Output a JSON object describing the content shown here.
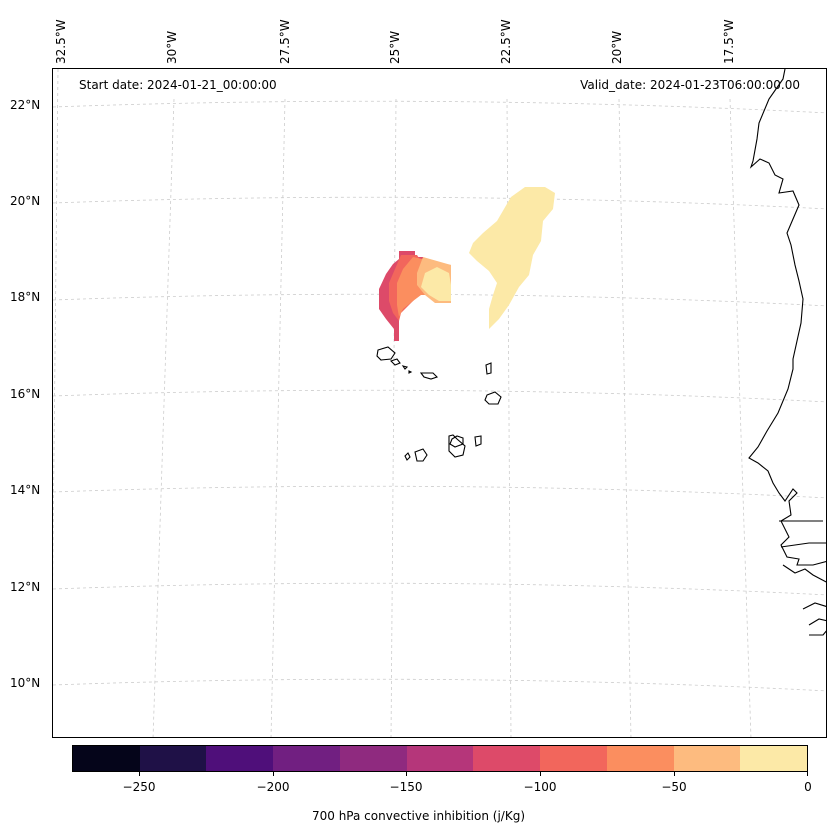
{
  "map": {
    "start_date": "Start date: 2024-01-21_00:00:00",
    "valid_date": "Valid_date: 2024-01-23T06:00:00.00",
    "lon_labels": [
      "32.5°W",
      "30°W",
      "27.5°W",
      "25°W",
      "22.5°W",
      "20°W",
      "17.5°W"
    ],
    "lat_labels": [
      "22°N",
      "20°N",
      "18°N",
      "16°N",
      "14°N",
      "12°N",
      "10°N"
    ],
    "gridlines": true,
    "coastline_color": "#000000"
  },
  "colorbar": {
    "label": "700 hPa convective inhibition (j/Kg)",
    "ticks": [
      "−250",
      "−200",
      "−150",
      "−100",
      "−50",
      "0"
    ],
    "range": [
      -275,
      0
    ],
    "colors": [
      "#05051a",
      "#1f1147",
      "#4f0f7a",
      "#711f81",
      "#8f2a7f",
      "#b5367a",
      "#dd4a69",
      "#f2665c",
      "#fb8e5f",
      "#fdbb7f",
      "#fce9a7"
    ]
  },
  "fields": {
    "blob_west_outer_color": "#dd4a69",
    "blob_west_mid_color": "#f2665c",
    "blob_west_inner_color": "#fb8e5f",
    "blob_west_core_color": "#fdbb7f",
    "blob_west_center_color": "#fce9a7",
    "blob_east_color": "#fce9a7"
  }
}
